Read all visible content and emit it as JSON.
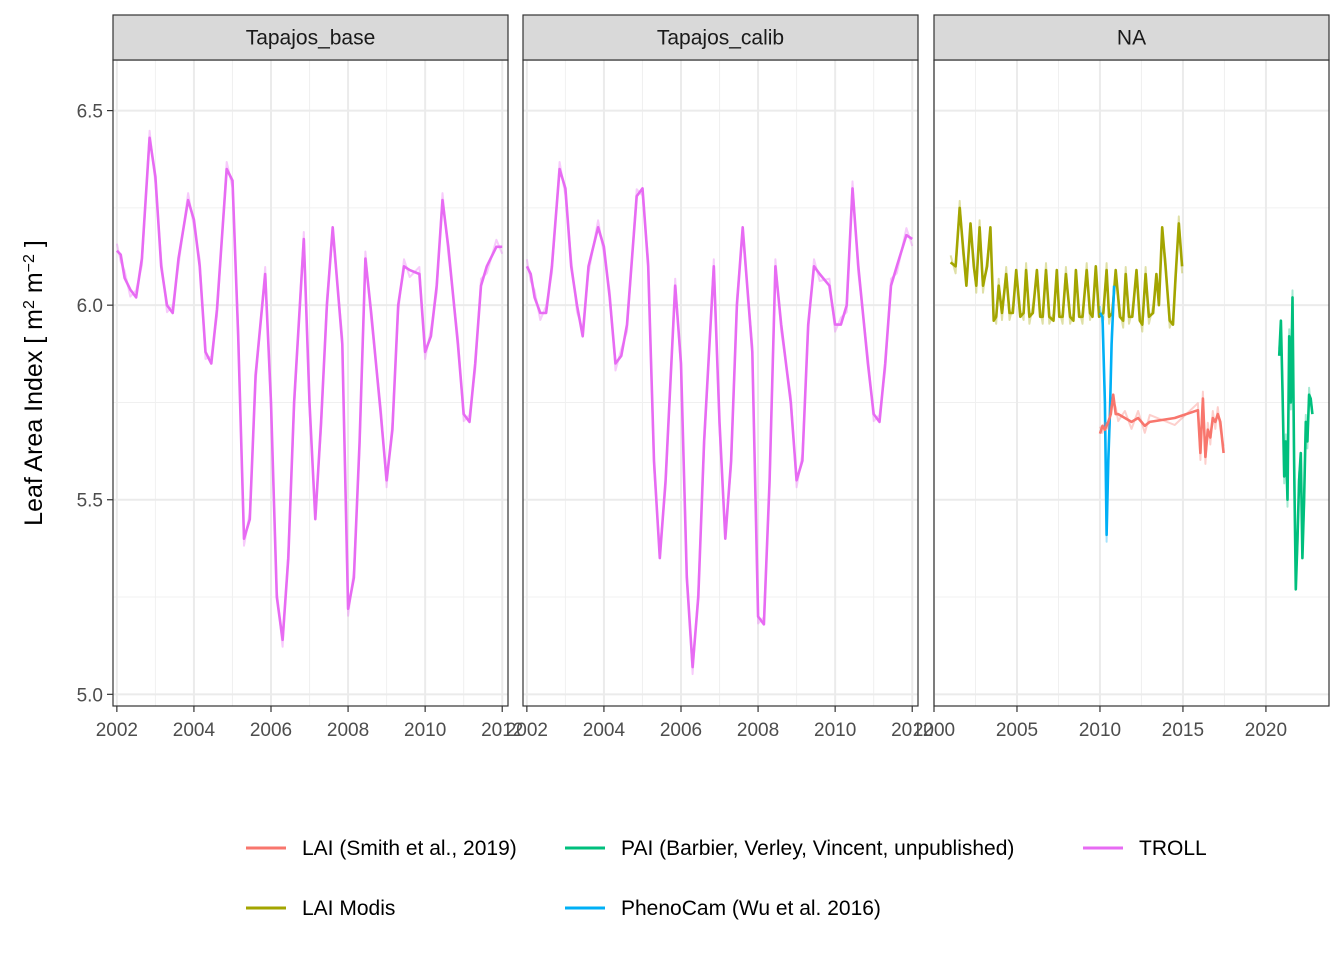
{
  "chart_data": {
    "type": "line",
    "ylabel": {
      "prefix": "Leaf Area Index [ m",
      "sup1": "2",
      "mid": " m",
      "sup2": "−2",
      "suffix": " ]"
    },
    "ylim": [
      4.97,
      6.63
    ],
    "yticks": [
      "5.0",
      "5.5",
      "6.0",
      "6.5"
    ],
    "ytick_values": [
      5.0,
      5.5,
      6.0,
      6.5
    ],
    "grid": true,
    "legend_position": "bottom",
    "panels": [
      {
        "strip": "Tapajos_base",
        "xlim": [
          2001.9,
          2012.15
        ],
        "xticks": [
          "2002",
          "2004",
          "2006",
          "2008",
          "2010",
          "2012"
        ],
        "xtick_values": [
          2002,
          2004,
          2006,
          2008,
          2010,
          2012
        ],
        "series": [
          {
            "series": "TROLL",
            "x": [
              2002.0,
              2002.1,
              2002.2,
              2002.35,
              2002.5,
              2002.65,
              2002.85,
              2003.0,
              2003.15,
              2003.3,
              2003.45,
              2003.6,
              2003.85,
              2004.0,
              2004.15,
              2004.3,
              2004.45,
              2004.6,
              2004.85,
              2005.0,
              2005.15,
              2005.3,
              2005.45,
              2005.6,
              2005.85,
              2006.0,
              2006.15,
              2006.3,
              2006.45,
              2006.6,
              2006.85,
              2007.0,
              2007.15,
              2007.3,
              2007.45,
              2007.6,
              2007.85,
              2008.0,
              2008.15,
              2008.3,
              2008.45,
              2008.6,
              2008.85,
              2009.0,
              2009.15,
              2009.3,
              2009.45,
              2009.6,
              2009.85,
              2010.0,
              2010.15,
              2010.3,
              2010.45,
              2010.6,
              2010.85,
              2011.0,
              2011.15,
              2011.3,
              2011.45,
              2011.6,
              2011.85,
              2012.0
            ],
            "y": [
              6.14,
              6.13,
              6.07,
              6.04,
              6.02,
              6.12,
              6.43,
              6.33,
              6.1,
              6.0,
              5.98,
              6.12,
              6.27,
              6.22,
              6.1,
              5.88,
              5.85,
              5.99,
              6.35,
              6.32,
              5.92,
              5.4,
              5.45,
              5.82,
              6.08,
              5.75,
              5.25,
              5.14,
              5.35,
              5.75,
              6.17,
              5.75,
              5.45,
              5.7,
              6.0,
              6.2,
              5.9,
              5.22,
              5.3,
              5.65,
              6.12,
              5.98,
              5.72,
              5.55,
              5.68,
              6.0,
              6.1,
              6.09,
              6.08,
              5.88,
              5.92,
              6.05,
              6.27,
              6.15,
              5.9,
              5.72,
              5.7,
              5.85,
              6.05,
              6.1,
              6.15,
              6.15
            ]
          }
        ]
      },
      {
        "strip": "Tapajos_calib",
        "xlim": [
          2001.9,
          2012.15
        ],
        "xticks": [
          "2002",
          "2004",
          "2006",
          "2008",
          "2010",
          "2012"
        ],
        "xtick_values": [
          2002,
          2004,
          2006,
          2008,
          2010,
          2012
        ],
        "series": [
          {
            "series": "TROLL",
            "x": [
              2002.0,
              2002.1,
              2002.2,
              2002.35,
              2002.5,
              2002.65,
              2002.85,
              2003.0,
              2003.15,
              2003.3,
              2003.45,
              2003.6,
              2003.85,
              2004.0,
              2004.15,
              2004.3,
              2004.45,
              2004.6,
              2004.85,
              2005.0,
              2005.15,
              2005.3,
              2005.45,
              2005.6,
              2005.85,
              2006.0,
              2006.15,
              2006.3,
              2006.45,
              2006.6,
              2006.85,
              2007.0,
              2007.15,
              2007.3,
              2007.45,
              2007.6,
              2007.85,
              2008.0,
              2008.15,
              2008.3,
              2008.45,
              2008.6,
              2008.85,
              2009.0,
              2009.15,
              2009.3,
              2009.45,
              2009.6,
              2009.85,
              2010.0,
              2010.15,
              2010.3,
              2010.45,
              2010.6,
              2010.85,
              2011.0,
              2011.15,
              2011.3,
              2011.45,
              2011.6,
              2011.85,
              2012.0
            ],
            "y": [
              6.1,
              6.08,
              6.02,
              5.98,
              5.98,
              6.1,
              6.35,
              6.3,
              6.1,
              6.0,
              5.92,
              6.1,
              6.2,
              6.15,
              6.02,
              5.85,
              5.87,
              5.95,
              6.28,
              6.3,
              6.1,
              5.6,
              5.35,
              5.55,
              6.05,
              5.85,
              5.3,
              5.07,
              5.25,
              5.65,
              6.1,
              5.7,
              5.4,
              5.6,
              6.0,
              6.2,
              5.88,
              5.2,
              5.18,
              5.55,
              6.1,
              5.95,
              5.75,
              5.55,
              5.6,
              5.95,
              6.1,
              6.08,
              6.05,
              5.95,
              5.95,
              6.0,
              6.3,
              6.1,
              5.85,
              5.72,
              5.7,
              5.85,
              6.05,
              6.1,
              6.18,
              6.17
            ]
          }
        ]
      },
      {
        "strip": "NA",
        "xlim": [
          2000.0,
          2023.8
        ],
        "xticks": [
          "2000",
          "2005",
          "2010",
          "2015",
          "2020"
        ],
        "xtick_values": [
          2000,
          2005,
          2010,
          2015,
          2020
        ],
        "series": [
          {
            "series": "LAI Modis",
            "x": [
              2001.0,
              2001.3,
              2001.55,
              2001.75,
              2001.95,
              2002.2,
              2002.4,
              2002.55,
              2002.75,
              2002.95,
              2003.2,
              2003.4,
              2003.6,
              2003.75,
              2003.9,
              2004.1,
              2004.35,
              2004.55,
              2004.75,
              2004.95,
              2005.2,
              2005.4,
              2005.55,
              2005.75,
              2005.95,
              2006.2,
              2006.4,
              2006.55,
              2006.75,
              2006.95,
              2007.2,
              2007.4,
              2007.55,
              2007.75,
              2007.95,
              2008.2,
              2008.4,
              2008.55,
              2008.75,
              2008.95,
              2009.2,
              2009.4,
              2009.55,
              2009.75,
              2009.95,
              2010.2,
              2010.4,
              2010.55,
              2010.75,
              2010.95,
              2011.2,
              2011.4,
              2011.55,
              2011.75,
              2011.95,
              2012.2,
              2012.4,
              2012.55,
              2012.75,
              2012.95,
              2013.2,
              2013.4,
              2013.55,
              2013.75,
              2013.95,
              2014.2,
              2014.4,
              2014.55,
              2014.75,
              2014.95
            ],
            "y": [
              6.11,
              6.1,
              6.25,
              6.15,
              6.05,
              6.21,
              6.1,
              6.05,
              6.2,
              6.05,
              6.1,
              6.2,
              5.96,
              5.97,
              6.05,
              5.98,
              6.08,
              5.98,
              5.98,
              6.09,
              5.97,
              5.98,
              6.09,
              5.97,
              5.98,
              6.09,
              5.97,
              5.97,
              6.09,
              5.97,
              5.96,
              6.09,
              5.97,
              5.97,
              6.08,
              5.97,
              5.96,
              6.09,
              5.97,
              5.97,
              6.09,
              5.98,
              5.97,
              6.1,
              5.97,
              5.98,
              6.09,
              5.97,
              5.98,
              6.09,
              5.97,
              5.96,
              6.08,
              5.97,
              5.97,
              6.09,
              5.96,
              5.95,
              6.08,
              5.97,
              5.98,
              6.08,
              6.0,
              6.2,
              6.1,
              5.96,
              5.95,
              6.07,
              6.21,
              6.1
            ]
          },
          {
            "series": "PhenoCam (Wu et al. 2016)",
            "x": [
              2010.0,
              2010.15,
              2010.3,
              2010.4,
              2010.5,
              2010.6,
              2010.7,
              2010.85
            ],
            "y": [
              5.98,
              5.97,
              5.75,
              5.41,
              5.6,
              5.72,
              5.9,
              6.05
            ]
          },
          {
            "series": "LAI (Smith et al., 2019)",
            "x": [
              2010.0,
              2010.15,
              2010.3,
              2010.5,
              2010.65,
              2010.8,
              2010.95,
              2011.1,
              2011.5,
              2011.9,
              2012.3,
              2012.7,
              2013.0,
              2014.5,
              2015.9,
              2016.05,
              2016.2,
              2016.35,
              2016.5,
              2016.65,
              2016.8,
              2016.95,
              2017.1,
              2017.25,
              2017.45
            ],
            "y": [
              5.67,
              5.69,
              5.68,
              5.7,
              5.72,
              5.77,
              5.72,
              5.72,
              5.71,
              5.7,
              5.71,
              5.69,
              5.7,
              5.71,
              5.73,
              5.62,
              5.76,
              5.61,
              5.68,
              5.66,
              5.71,
              5.7,
              5.72,
              5.7,
              5.62
            ]
          },
          {
            "series": "PAI (Barbier, Verley, Vincent, unpublished)",
            "x": [
              2020.8,
              2020.9,
              2021.0,
              2021.1,
              2021.2,
              2021.3,
              2021.4,
              2021.5,
              2021.6,
              2021.7,
              2021.8,
              2021.9,
              2022.0,
              2022.1,
              2022.2,
              2022.3,
              2022.4,
              2022.5,
              2022.6,
              2022.7,
              2022.8
            ],
            "y": [
              5.87,
              5.96,
              5.78,
              5.56,
              5.65,
              5.5,
              5.92,
              5.75,
              6.02,
              5.6,
              5.27,
              5.4,
              5.55,
              5.62,
              5.35,
              5.5,
              5.7,
              5.65,
              5.77,
              5.76,
              5.72
            ]
          }
        ]
      }
    ],
    "legend": [
      {
        "label": "LAI (Smith et al., 2019)",
        "color": "#F8766D"
      },
      {
        "label": "PAI (Barbier, Verley, Vincent, unpublished)",
        "color": "#00BF7D"
      },
      {
        "label": "TROLL",
        "color": "#E76BF3"
      },
      {
        "label": "LAI Modis",
        "color": "#A3A500"
      },
      {
        "label": "PhenoCam (Wu et al. 2016)",
        "color": "#00B0F6"
      }
    ],
    "colors": {
      "TROLL": "#E76BF3",
      "LAI Modis": "#A3A500",
      "PhenoCam (Wu et al. 2016)": "#00B0F6",
      "LAI (Smith et al., 2019)": "#F8766D",
      "PAI (Barbier, Verley, Vincent, unpublished)": "#00BF7D"
    }
  }
}
